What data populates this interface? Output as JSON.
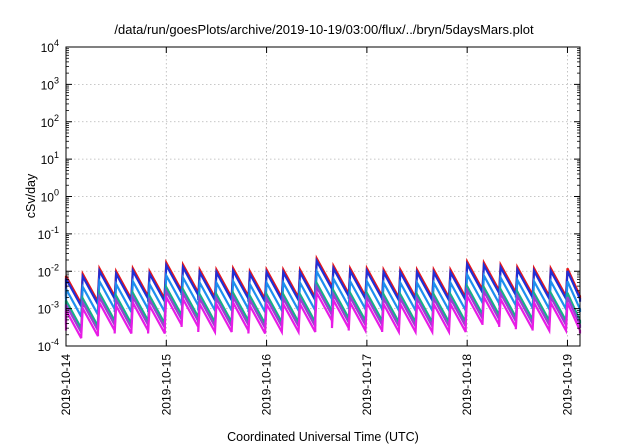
{
  "chart_data": {
    "type": "line",
    "title": "/data/run/goesPlots/archive/2019-10-19/03:00/flux/../bryn/5daysMars.plot",
    "xlabel": "Coordinated Universal Time (UTC)",
    "ylabel": "cSv/day",
    "yscale": "log",
    "ylim": [
      0.0001,
      10000
    ],
    "xlim": [
      "2019-10-14 00:00",
      "2019-10-19 03:00"
    ],
    "grid": true,
    "y_ticks": [
      {
        "mant": "10",
        "exp": "4"
      },
      {
        "mant": "10",
        "exp": "3"
      },
      {
        "mant": "10",
        "exp": "2"
      },
      {
        "mant": "10",
        "exp": "1"
      },
      {
        "mant": "10",
        "exp": "0"
      },
      {
        "mant": "10",
        "exp": "-1"
      },
      {
        "mant": "10",
        "exp": "-2"
      },
      {
        "mant": "10",
        "exp": "-3"
      },
      {
        "mant": "10",
        "exp": "-4"
      }
    ],
    "x_ticks": [
      "2019-10-14",
      "2019-10-15",
      "2019-10-16",
      "2019-10-17",
      "2019-10-18",
      "2019-10-19"
    ],
    "cycle_peaks_hours": [
      0,
      4,
      8,
      12,
      16,
      20,
      24,
      28,
      32,
      36,
      40,
      44,
      48,
      52,
      56,
      60,
      64,
      68,
      72,
      76,
      80,
      84,
      88,
      92,
      96,
      100,
      104,
      108,
      112,
      116,
      120,
      124
    ],
    "cycle_peak_values": [
      0.0075,
      0.0085,
      0.012,
      0.01,
      0.012,
      0.01,
      0.017,
      0.015,
      0.011,
      0.011,
      0.012,
      0.01,
      0.011,
      0.011,
      0.011,
      0.022,
      0.014,
      0.012,
      0.012,
      0.011,
      0.011,
      0.011,
      0.011,
      0.011,
      0.018,
      0.017,
      0.015,
      0.013,
      0.012,
      0.012,
      0.012,
      0.01
    ],
    "cycle_trough_ratio": 0.18,
    "series": [
      {
        "color": "#e8171b",
        "scale": 1.0
      },
      {
        "color": "#1f2fd6",
        "scale": 0.85
      },
      {
        "color": "#1e8fef",
        "scale": 0.45
      },
      {
        "color": "#16b08a",
        "scale": 0.22
      },
      {
        "color": "#9a3fd2",
        "scale": 0.17
      },
      {
        "color": "#e81ce6",
        "scale": 0.12
      }
    ]
  }
}
